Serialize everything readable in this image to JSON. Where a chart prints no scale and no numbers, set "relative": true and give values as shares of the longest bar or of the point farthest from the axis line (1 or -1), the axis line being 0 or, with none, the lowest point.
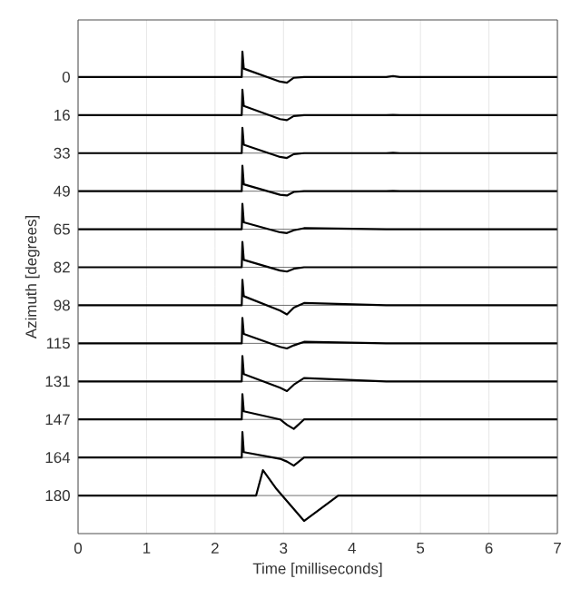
{
  "chart_data": [
    {
      "type": "line",
      "relative": true,
      "x": [
        0,
        2.39,
        2.4,
        2.42,
        2.95,
        3.05,
        3.15,
        3.3,
        4.5,
        4.6,
        4.7,
        7
      ],
      "xlim": [
        0,
        7
      ],
      "xticks": [
        0,
        1,
        2,
        3,
        4,
        5,
        6,
        7
      ],
      "grid": "x",
      "tick_labels": false,
      "series": [
        {
          "name": "0",
          "color": "#000000",
          "values": [
            0,
            0,
            1,
            0.33,
            -0.18,
            -0.22,
            -0.03,
            0,
            0,
            0.04,
            0,
            0
          ]
        }
      ]
    },
    {
      "type": "line",
      "relative": true,
      "x": [
        0,
        2.39,
        2.4,
        2.42,
        2.95,
        3.05,
        3.15,
        3.3,
        4.5,
        4.6,
        4.7,
        7
      ],
      "xlim": [
        0,
        7
      ],
      "xticks": [
        0,
        1,
        2,
        3,
        4,
        5,
        6,
        7
      ],
      "grid": "x",
      "tick_labels": false,
      "series": [
        {
          "name": "16",
          "color": "#000000",
          "values": [
            0,
            0,
            1,
            0.36,
            -0.16,
            -0.2,
            -0.04,
            0,
            0,
            0.01,
            0,
            0
          ]
        }
      ]
    },
    {
      "type": "line",
      "relative": true,
      "x": [
        0,
        2.39,
        2.4,
        2.42,
        2.95,
        3.05,
        3.15,
        3.3,
        4.5,
        4.6,
        4.7,
        7
      ],
      "xlim": [
        0,
        7
      ],
      "xticks": [
        0,
        1,
        2,
        3,
        4,
        5,
        6,
        7
      ],
      "grid": "x",
      "tick_labels": false,
      "series": [
        {
          "name": "33",
          "color": "#000000",
          "values": [
            0,
            0,
            1,
            0.33,
            -0.15,
            -0.19,
            -0.04,
            0,
            0,
            0.01,
            0,
            0
          ]
        }
      ]
    },
    {
      "type": "line",
      "relative": true,
      "x": [
        0,
        2.39,
        2.4,
        2.42,
        2.95,
        3.05,
        3.15,
        3.3,
        4.5,
        4.6,
        4.7,
        7
      ],
      "xlim": [
        0,
        7
      ],
      "xticks": [
        0,
        1,
        2,
        3,
        4,
        5,
        6,
        7
      ],
      "grid": "x",
      "tick_labels": false,
      "series": [
        {
          "name": "49",
          "color": "#000000",
          "values": [
            0,
            0,
            1,
            0.27,
            -0.14,
            -0.17,
            -0.03,
            0,
            0,
            0.01,
            0,
            0
          ]
        }
      ]
    },
    {
      "type": "line",
      "relative": true,
      "x": [
        0,
        2.39,
        2.4,
        2.42,
        2.95,
        3.05,
        3.15,
        3.3,
        4.5,
        4.6,
        4.7,
        7
      ],
      "xlim": [
        0,
        7
      ],
      "xticks": [
        0,
        1,
        2,
        3,
        4,
        5,
        6,
        7
      ],
      "grid": "x",
      "tick_labels": false,
      "series": [
        {
          "name": "65",
          "color": "#000000",
          "values": [
            0,
            0,
            1,
            0.27,
            -0.12,
            -0.15,
            -0.04,
            0.04,
            0,
            0,
            0,
            0
          ]
        }
      ]
    },
    {
      "type": "line",
      "relative": true,
      "x": [
        0,
        2.39,
        2.4,
        2.42,
        2.95,
        3.05,
        3.15,
        3.3,
        4.5,
        4.6,
        4.7,
        7
      ],
      "xlim": [
        0,
        7
      ],
      "xticks": [
        0,
        1,
        2,
        3,
        4,
        5,
        6,
        7
      ],
      "grid": "x",
      "tick_labels": false,
      "ylabel": "Azimuth [degrees]",
      "series": [
        {
          "name": "82",
          "color": "#000000",
          "values": [
            0,
            0,
            1,
            0.29,
            -0.13,
            -0.17,
            -0.06,
            0,
            0,
            0,
            0,
            0
          ]
        }
      ]
    },
    {
      "type": "line",
      "relative": true,
      "x": [
        0,
        2.39,
        2.4,
        2.42,
        2.95,
        3.05,
        3.15,
        3.3,
        4.5,
        4.6,
        4.7,
        7
      ],
      "xlim": [
        0,
        7
      ],
      "xticks": [
        0,
        1,
        2,
        3,
        4,
        5,
        6,
        7
      ],
      "grid": "x",
      "tick_labels": false,
      "series": [
        {
          "name": "98",
          "color": "#000000",
          "values": [
            0,
            0,
            1,
            0.36,
            -0.21,
            -0.36,
            -0.09,
            0.09,
            0,
            0,
            0,
            0
          ]
        }
      ]
    },
    {
      "type": "line",
      "relative": true,
      "x": [
        0,
        2.39,
        2.4,
        2.42,
        2.95,
        3.05,
        3.15,
        3.3,
        4.5,
        4.6,
        4.7,
        7
      ],
      "xlim": [
        0,
        7
      ],
      "xticks": [
        0,
        1,
        2,
        3,
        4,
        5,
        6,
        7
      ],
      "grid": "x",
      "tick_labels": false,
      "series": [
        {
          "name": "115",
          "color": "#000000",
          "values": [
            0,
            0,
            1,
            0.37,
            -0.14,
            -0.2,
            -0.08,
            0.06,
            0,
            0,
            0,
            0
          ]
        }
      ]
    },
    {
      "type": "line",
      "relative": true,
      "x": [
        0,
        2.39,
        2.4,
        2.42,
        2.95,
        3.05,
        3.15,
        3.3,
        4.5,
        4.6,
        4.7,
        7
      ],
      "xlim": [
        0,
        7
      ],
      "xticks": [
        0,
        1,
        2,
        3,
        4,
        5,
        6,
        7
      ],
      "grid": "x",
      "tick_labels": false,
      "series": [
        {
          "name": "131",
          "color": "#000000",
          "values": [
            0,
            0,
            1,
            0.29,
            -0.25,
            -0.38,
            -0.13,
            0.13,
            0,
            0,
            0,
            0
          ]
        }
      ]
    },
    {
      "type": "line",
      "relative": true,
      "x": [
        0,
        2.39,
        2.4,
        2.42,
        2.95,
        3.05,
        3.15,
        3.3,
        4.5,
        4.6,
        4.7,
        7
      ],
      "xlim": [
        0,
        7
      ],
      "xticks": [
        0,
        1,
        2,
        3,
        4,
        5,
        6,
        7
      ],
      "grid": "x",
      "tick_labels": false,
      "series": [
        {
          "name": "147",
          "color": "#000000",
          "values": [
            0,
            0,
            1,
            0.32,
            0,
            -0.21,
            -0.37,
            0,
            0,
            0,
            0,
            0
          ]
        }
      ]
    },
    {
      "type": "line",
      "relative": true,
      "x": [
        0,
        2.39,
        2.4,
        2.42,
        2.95,
        3.05,
        3.15,
        3.3,
        4.5,
        4.6,
        4.7,
        7
      ],
      "xlim": [
        0,
        7
      ],
      "xticks": [
        0,
        1,
        2,
        3,
        4,
        5,
        6,
        7
      ],
      "grid": "x",
      "tick_labels": false,
      "series": [
        {
          "name": "164",
          "color": "#000000",
          "values": [
            0,
            0,
            1,
            0.21,
            -0.05,
            -0.16,
            -0.32,
            0,
            0,
            0,
            0,
            0
          ]
        }
      ]
    },
    {
      "type": "line",
      "relative": true,
      "x": [
        0,
        2.6,
        2.7,
        2.9,
        3.3,
        3.8,
        7
      ],
      "xlim": [
        0,
        7
      ],
      "xticks": [
        0,
        1,
        2,
        3,
        4,
        5,
        6,
        7
      ],
      "grid": "x",
      "tick_labels": "x",
      "xlabel": "Time [milliseconds]",
      "series": [
        {
          "name": "180",
          "color": "#000000",
          "values": [
            0,
            0,
            1,
            0.25,
            -1,
            0,
            0
          ]
        }
      ]
    }
  ]
}
